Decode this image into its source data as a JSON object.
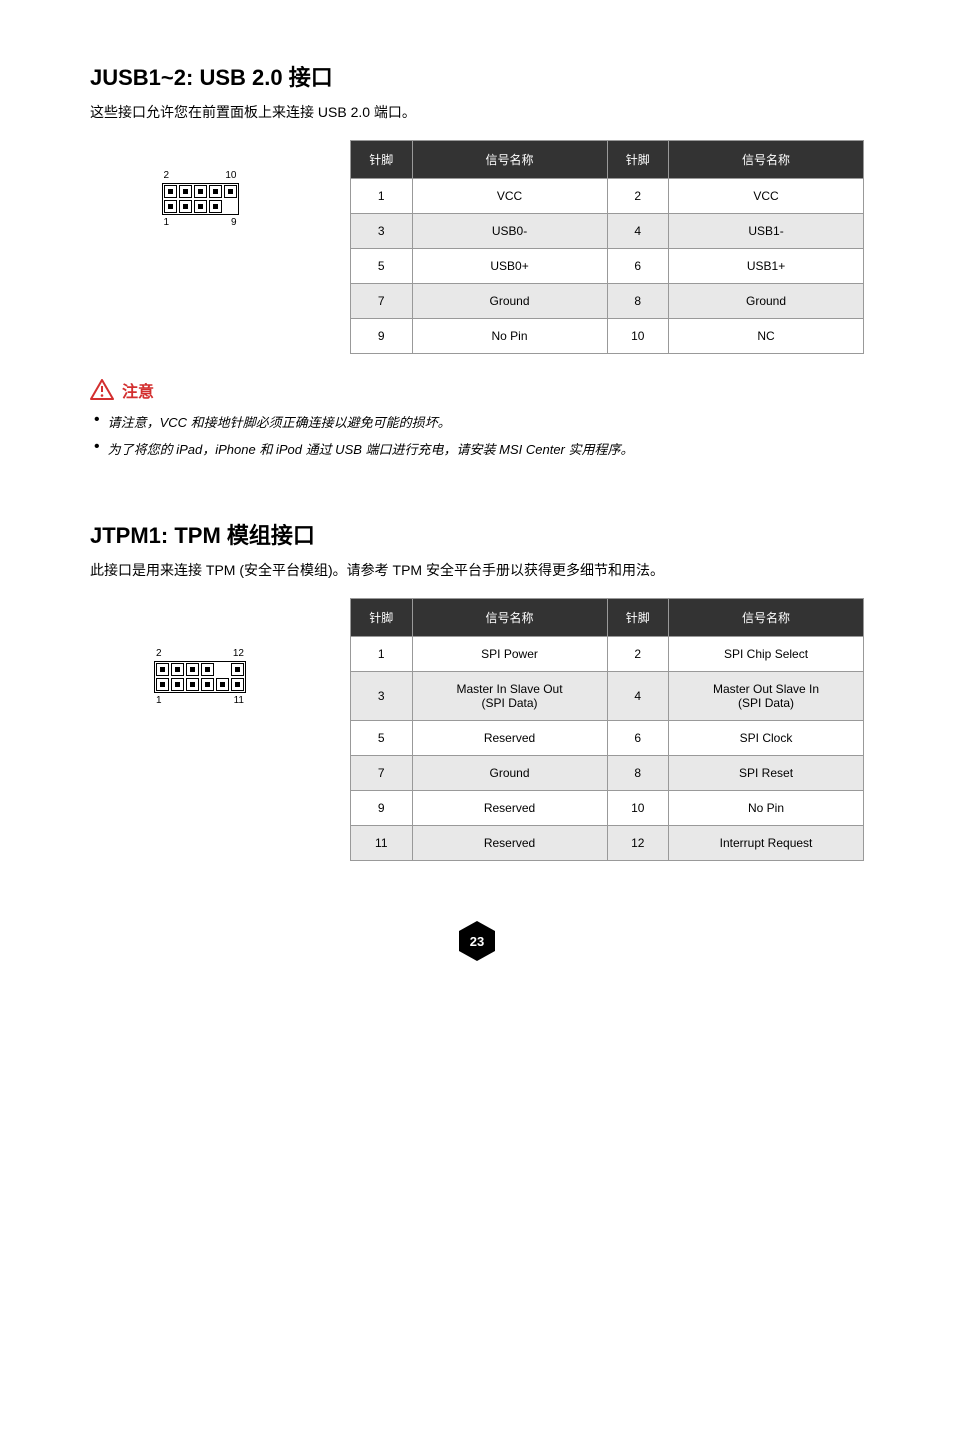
{
  "section1": {
    "heading": "JUSB1~2: USB 2.0 接口",
    "desc": "这些接口允许您在前置面板上来连接 USB 2.0 端口。",
    "diagram": {
      "top_left": "2",
      "top_right": "10",
      "bot_left": "1",
      "bot_right": "9"
    },
    "th": [
      "针脚",
      "信号名称",
      "针脚",
      "信号名称"
    ],
    "rows": [
      [
        "1",
        "VCC",
        "2",
        "VCC"
      ],
      [
        "3",
        "USB0-",
        "4",
        "USB1-"
      ],
      [
        "5",
        "USB0+",
        "6",
        "USB1+"
      ],
      [
        "7",
        "Ground",
        "8",
        "Ground"
      ],
      [
        "9",
        "No Pin",
        "10",
        "NC"
      ]
    ]
  },
  "warning": {
    "title": "注意",
    "items": [
      "请注意，VCC 和接地针脚必须正确连接以避免可能的损坏。",
      "为了将您的 iPad，iPhone 和 iPod 通过 USB 端口进行充电，请安装 MSI Center 实用程序。"
    ]
  },
  "section2": {
    "heading": "JTPM1: TPM 模组接口",
    "desc": "此接口是用来连接 TPM (安全平台模组)。请参考 TPM 安全平台手册以获得更多细节和用法。",
    "diagram": {
      "top_left": "2",
      "top_right": "12",
      "bot_left": "1",
      "bot_right": "11"
    },
    "th": [
      "针脚",
      "信号名称",
      "针脚",
      "信号名称"
    ],
    "rows": [
      [
        "1",
        "SPI Power",
        "2",
        "SPI Chip Select"
      ],
      [
        "3",
        "Master In Slave Out\n(SPI Data)",
        "4",
        "Master Out Slave In\n(SPI Data)"
      ],
      [
        "5",
        "Reserved",
        "6",
        "SPI Clock"
      ],
      [
        "7",
        "Ground",
        "8",
        "SPI Reset"
      ],
      [
        "9",
        "Reserved",
        "10",
        "No Pin"
      ],
      [
        "11",
        "Reserved",
        "12",
        "Interrupt Request"
      ]
    ]
  },
  "page": "23",
  "colors": {
    "header_bg": "#333333",
    "alt_bg": "#e8e8e8",
    "warn": "#d32f2f"
  }
}
